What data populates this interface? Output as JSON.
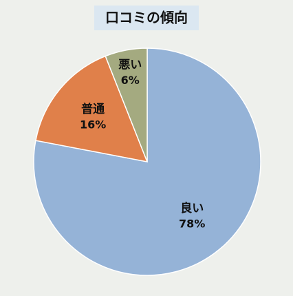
{
  "chart_data": {
    "type": "pie",
    "title": "口コミの傾向",
    "categories": [
      "良い",
      "普通",
      "悪い"
    ],
    "values": [
      78,
      16,
      6
    ],
    "value_labels": [
      "78%",
      "16%",
      "6%"
    ],
    "colors": [
      "#95b3d7",
      "#e0804a",
      "#a4aa80"
    ]
  }
}
